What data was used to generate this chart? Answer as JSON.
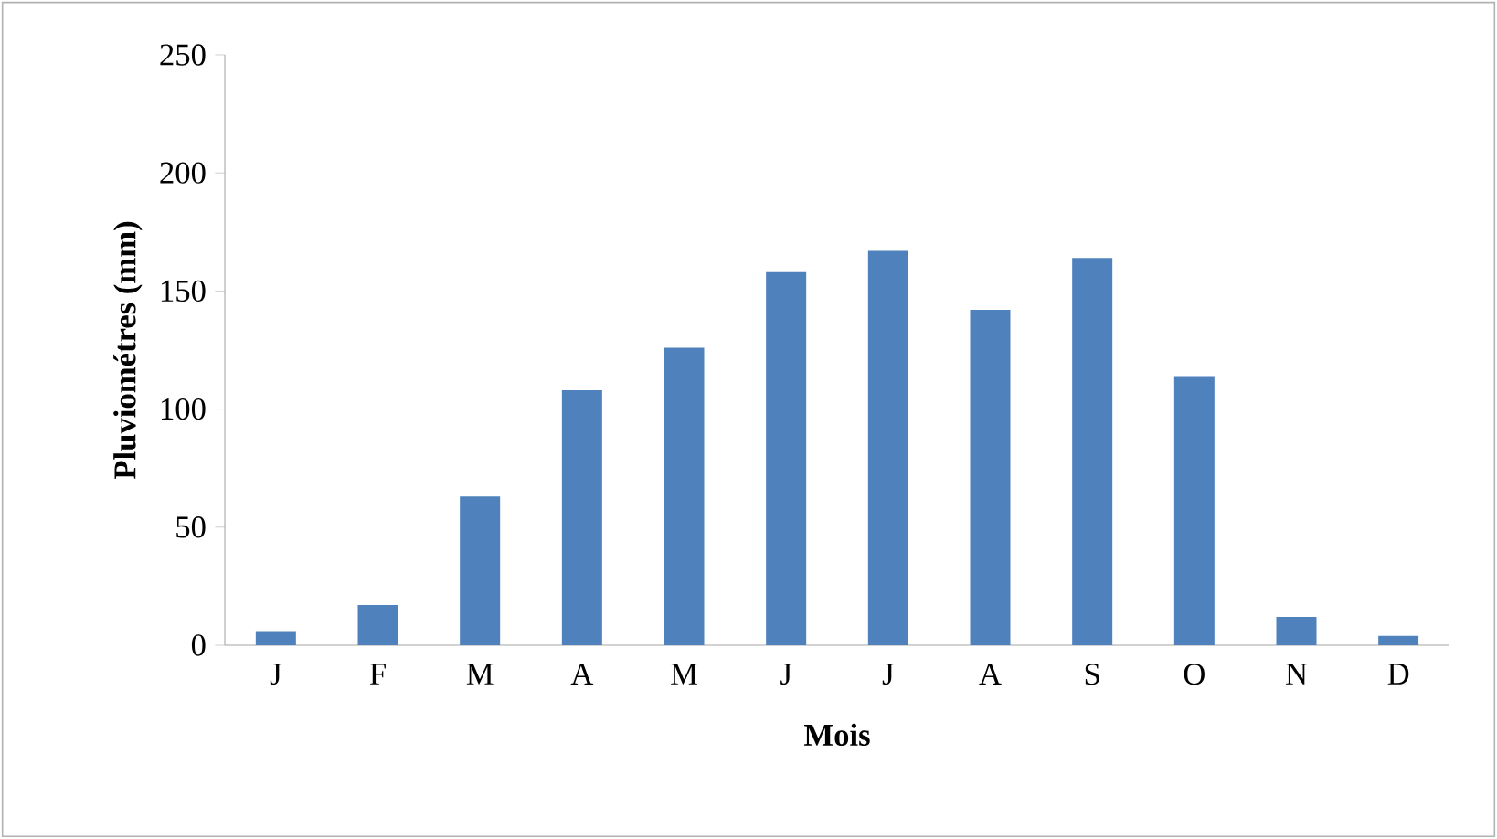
{
  "chart_data": {
    "type": "bar",
    "xlabel": "Mois",
    "ylabel": "Pluviométres (mm)",
    "categories": [
      "J",
      "F",
      "M",
      "A",
      "M",
      "J",
      "J",
      "A",
      "S",
      "O",
      "N",
      "D"
    ],
    "values": [
      6,
      17,
      63,
      108,
      126,
      158,
      167,
      142,
      164,
      114,
      12,
      4
    ],
    "color": "#4f81bd",
    "ylim": [
      0,
      250
    ],
    "yticks": [
      0,
      50,
      100,
      150,
      200,
      250
    ]
  }
}
